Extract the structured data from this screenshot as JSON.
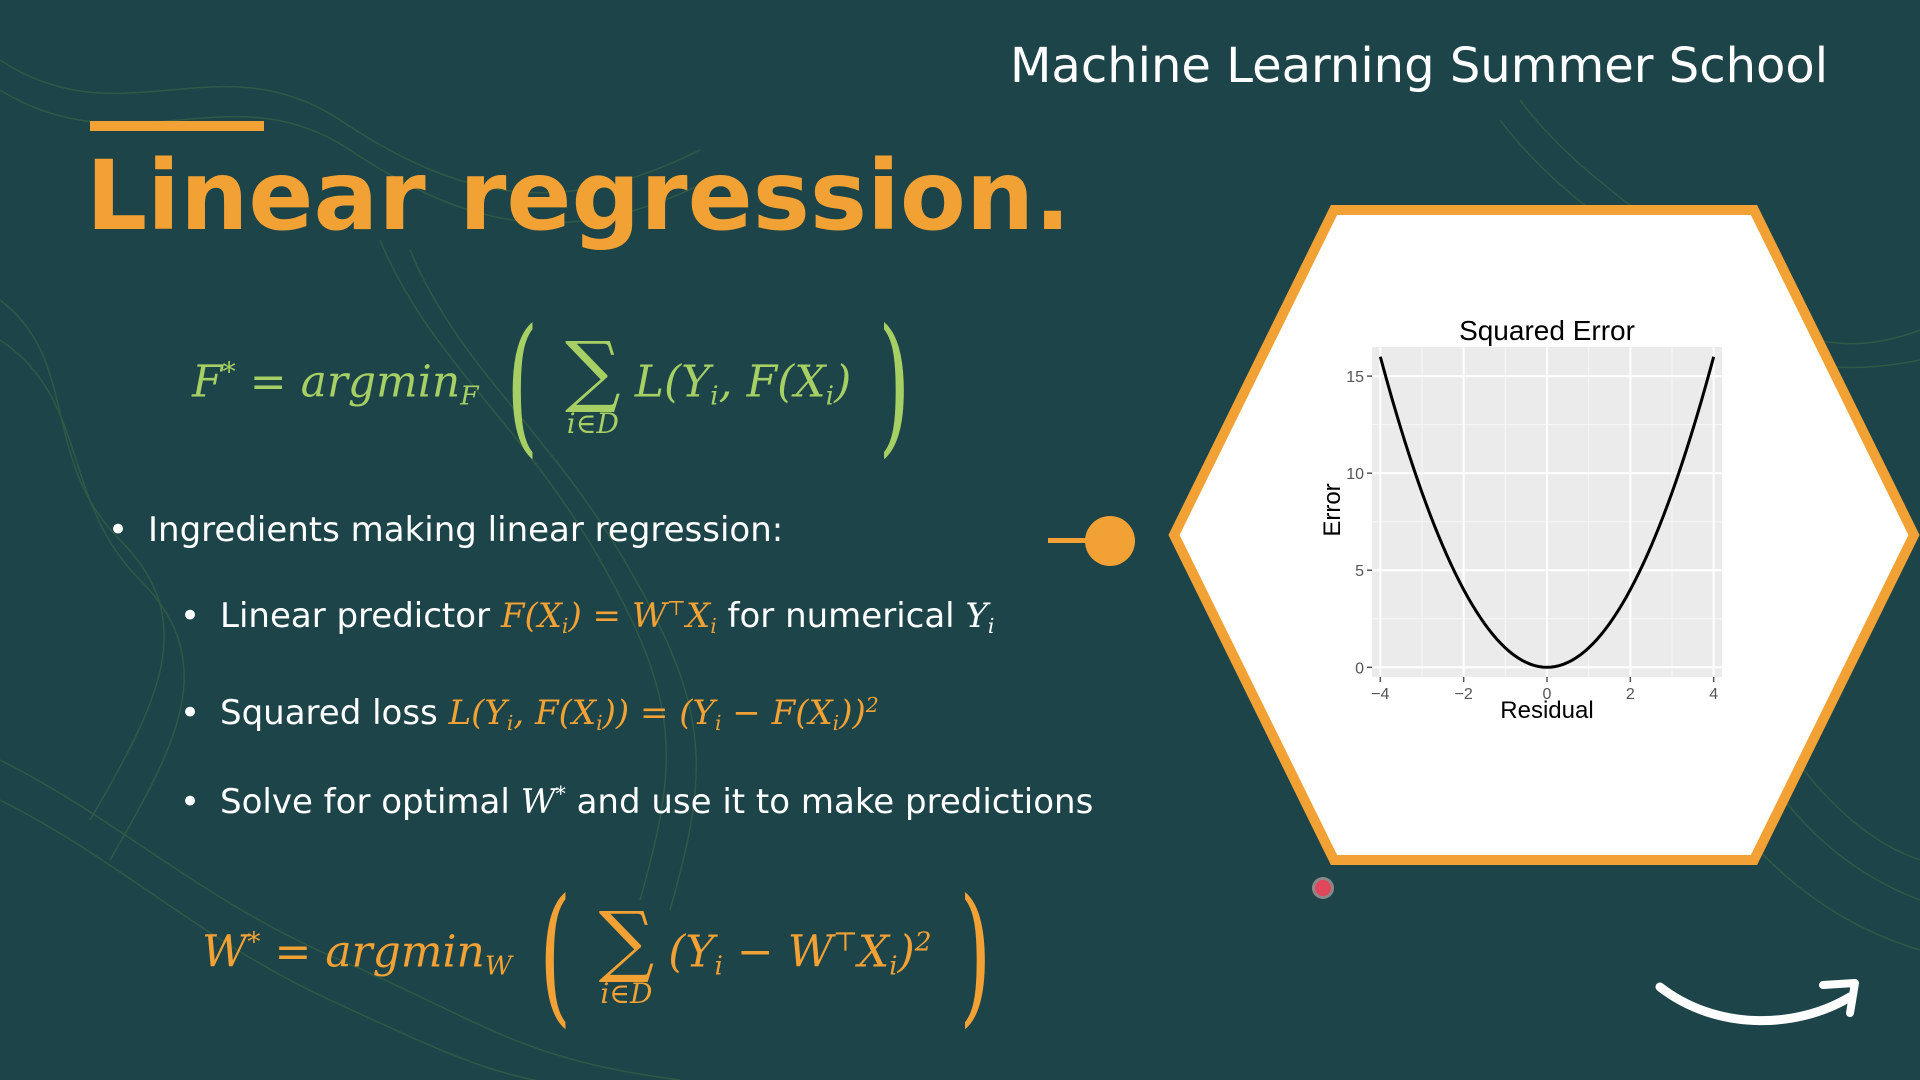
{
  "header": {
    "school_title": "Machine Learning Summer School",
    "slide_title": "Linear regression."
  },
  "equations": {
    "objective": {
      "lhs": "F",
      "lhs_sup": "*",
      "equals": "=",
      "op": "argmin",
      "op_sub": "F",
      "sum_symbol": "∑",
      "sum_sub": "i∈D",
      "body": "L(Y",
      "body_sub_1": "i",
      "body_mid": ", F(X",
      "body_sub_2": "i",
      "body_end": ")"
    },
    "solution": {
      "lhs": "W",
      "lhs_sup": "*",
      "equals": "=",
      "op": "argmin",
      "op_sub": "W",
      "sum_symbol": "∑",
      "sum_sub": "i∈D",
      "body_start": "(Y",
      "body_sub_1": "i",
      "body_mid": " − W",
      "body_sup_T": "⊤",
      "body_x": "X",
      "body_sub_2": "i",
      "body_end": ")",
      "body_sup_2": "2"
    }
  },
  "bullets": {
    "ingredients": "Ingredients making linear regression:",
    "predictor_prefix": "Linear predictor",
    "predictor_math": "F(X",
    "predictor_math_sub": "i",
    "predictor_math_mid": ") = W",
    "predictor_math_sup": "⊤",
    "predictor_math_x": "X",
    "predictor_math_sub2": "i",
    "predictor_suffix": "for numerical",
    "predictor_y": "Y",
    "predictor_y_sub": "i",
    "loss_prefix": "Squared loss",
    "loss_math_1": "L(Y",
    "loss_math_sub_1": "i",
    "loss_math_2": ", F(X",
    "loss_math_sub_2": "i",
    "loss_math_3": ")) = (Y",
    "loss_math_sub_3": "i",
    "loss_math_4": " − F(X",
    "loss_math_sub_4": "i",
    "loss_math_5": "))",
    "loss_math_sup": "2",
    "solve_prefix": "Solve for optimal",
    "solve_math": "W",
    "solve_math_sup": "*",
    "solve_suffix": "and use it to make predictions"
  },
  "colors": {
    "background": "#1d4448",
    "accent": "#f2a134",
    "math_green": "#a6cf64",
    "text": "#ffffff"
  },
  "chart_data": {
    "type": "line",
    "title": "Squared Error",
    "xlabel": "Residual",
    "ylabel": "Error",
    "xlim": [
      -4.2,
      4.2
    ],
    "ylim": [
      -0.5,
      16.5
    ],
    "x_ticks": [
      -4,
      -2,
      0,
      2,
      4
    ],
    "x_tick_labels": [
      "−4",
      "−2",
      "0",
      "2",
      "4"
    ],
    "y_ticks": [
      0,
      5,
      10,
      15
    ],
    "y_tick_labels": [
      "0",
      "5",
      "10",
      "15"
    ],
    "grid": true,
    "series": [
      {
        "function": "y = x^2",
        "x": [
          -4,
          -3.5,
          -3,
          -2.5,
          -2,
          -1.5,
          -1,
          -0.5,
          0,
          0.5,
          1,
          1.5,
          2,
          2.5,
          3,
          3.5,
          4
        ],
        "y": [
          16,
          12.25,
          9,
          6.25,
          4,
          2.25,
          1,
          0.25,
          0,
          0.25,
          1,
          2.25,
          4,
          6.25,
          9,
          12.25,
          16
        ]
      }
    ]
  },
  "icons": {
    "logo": "amazon-smile-icon",
    "pointer": "laser-pointer-icon"
  }
}
